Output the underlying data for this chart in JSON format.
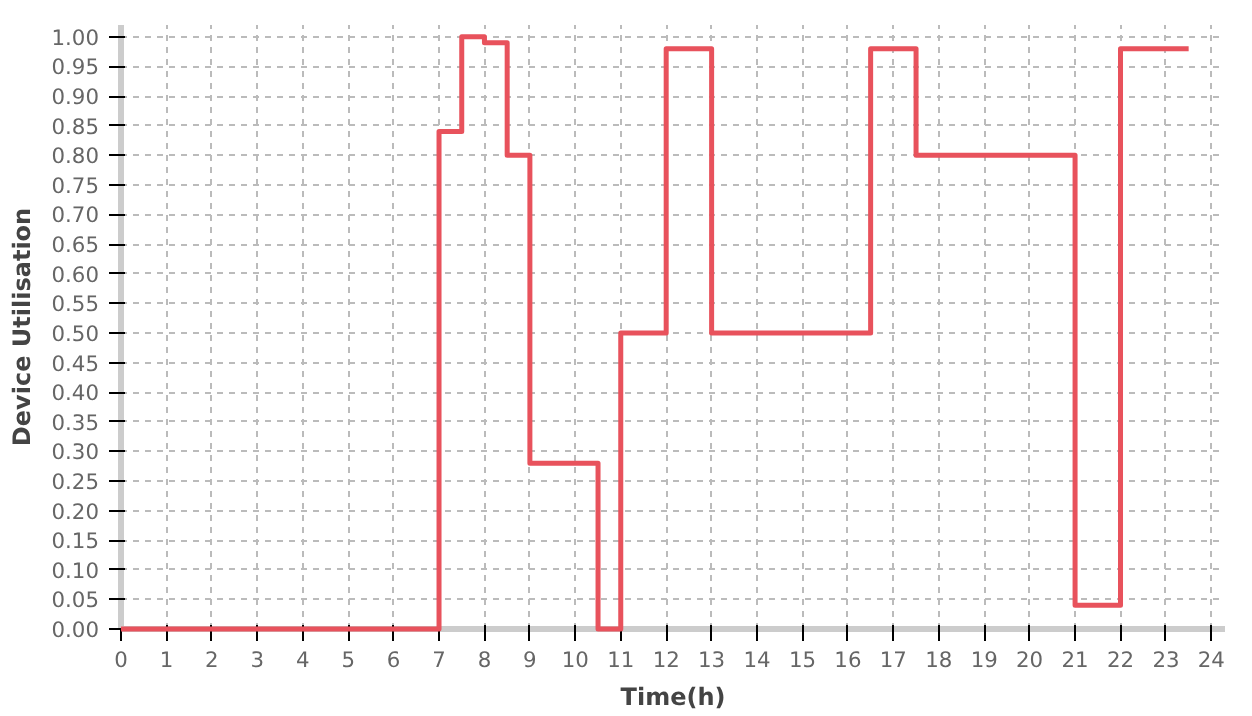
{
  "chart_data": {
    "type": "step",
    "xlabel": "Time(h)",
    "ylabel": "Device Utilisation",
    "x": [
      0,
      7,
      7.5,
      8,
      8.5,
      9,
      10.5,
      11,
      12,
      13,
      16.5,
      17.5,
      21,
      22,
      23.5
    ],
    "series": [
      {
        "color": "#e8525c",
        "values": [
          0,
          0.84,
          1.0,
          0.99,
          0.8,
          0.28,
          0,
          0.5,
          0.98,
          0.5,
          0.98,
          0.8,
          0.04,
          0.98,
          0.98
        ]
      }
    ],
    "xlim": [
      0,
      24.3
    ],
    "ylim": [
      0,
      1.02
    ],
    "xticks": [
      0,
      1,
      2,
      3,
      4,
      5,
      6,
      7,
      8,
      9,
      10,
      11,
      12,
      13,
      14,
      15,
      16,
      17,
      18,
      19,
      20,
      21,
      22,
      23,
      24
    ],
    "yticks": [
      {
        "value": 0,
        "label": "0.00"
      },
      0.05,
      {
        "value": 0.1,
        "label": "0.10"
      },
      0.15,
      {
        "value": 0.2,
        "label": "0.20"
      },
      0.25,
      {
        "value": 0.3,
        "label": "0.30"
      },
      0.35,
      {
        "value": 0.4,
        "label": "0.40"
      },
      0.45,
      {
        "value": 0.5,
        "label": "0.50"
      },
      0.55,
      {
        "value": 0.6,
        "label": "0.60"
      },
      0.65,
      {
        "value": 0.7,
        "label": "0.70"
      },
      0.75,
      {
        "value": 0.8,
        "label": "0.80"
      },
      0.85,
      {
        "value": 0.9,
        "label": "0.90"
      },
      0.95,
      {
        "value": 1,
        "label": "1.00"
      }
    ],
    "grid": true,
    "line_style": "solid"
  }
}
